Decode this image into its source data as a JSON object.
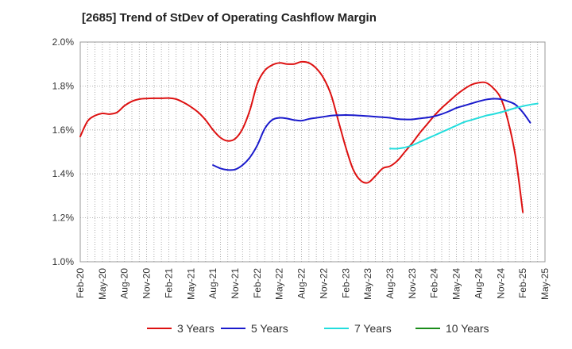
{
  "chart_data": {
    "type": "line",
    "title": "[2685]  Trend of StDev of Operating Cashflow Margin",
    "xlabel": "",
    "ylabel": "",
    "ylim": [
      1.0,
      2.0
    ],
    "y_ticks": [
      "1.0%",
      "1.2%",
      "1.4%",
      "1.6%",
      "1.8%",
      "2.0%"
    ],
    "x_ticks": [
      "Feb-20",
      "May-20",
      "Aug-20",
      "Nov-20",
      "Feb-21",
      "May-21",
      "Aug-21",
      "Nov-21",
      "Feb-22",
      "May-22",
      "Aug-22",
      "Nov-22",
      "Feb-23",
      "May-23",
      "Aug-23",
      "Nov-23",
      "Feb-24",
      "May-24",
      "Aug-24",
      "Nov-24",
      "Feb-25",
      "May-25"
    ],
    "x_start": "Feb-20",
    "grid": true,
    "legend_position": "bottom",
    "series": [
      {
        "name": "3 Years",
        "color": "#dd1111",
        "start_month_index": 0,
        "values": [
          1.57,
          1.64,
          1.665,
          1.675,
          1.672,
          1.68,
          1.71,
          1.73,
          1.74,
          1.743,
          1.744,
          1.744,
          1.745,
          1.74,
          1.725,
          1.705,
          1.68,
          1.645,
          1.6,
          1.565,
          1.55,
          1.56,
          1.605,
          1.69,
          1.81,
          1.87,
          1.895,
          1.905,
          1.9,
          1.9,
          1.91,
          1.905,
          1.88,
          1.835,
          1.76,
          1.64,
          1.52,
          1.42,
          1.37,
          1.36,
          1.39,
          1.425,
          1.435,
          1.46,
          1.5,
          1.54,
          1.585,
          1.625,
          1.665,
          1.7,
          1.73,
          1.76,
          1.785,
          1.805,
          1.815,
          1.815,
          1.79,
          1.745,
          1.64,
          1.48,
          1.225
        ]
      },
      {
        "name": "5 Years",
        "color": "#1a1acc",
        "start_month_index": 18,
        "values": [
          1.44,
          1.425,
          1.418,
          1.42,
          1.44,
          1.475,
          1.53,
          1.605,
          1.645,
          1.655,
          1.652,
          1.645,
          1.642,
          1.65,
          1.655,
          1.66,
          1.665,
          1.667,
          1.668,
          1.667,
          1.665,
          1.663,
          1.66,
          1.658,
          1.655,
          1.65,
          1.648,
          1.648,
          1.652,
          1.656,
          1.662,
          1.672,
          1.685,
          1.7,
          1.71,
          1.72,
          1.73,
          1.738,
          1.742,
          1.74,
          1.73,
          1.715,
          1.68,
          1.633
        ]
      },
      {
        "name": "7 Years",
        "color": "#22dddd",
        "start_month_index": 42,
        "values": [
          1.515,
          1.515,
          1.52,
          1.53,
          1.545,
          1.56,
          1.575,
          1.59,
          1.605,
          1.62,
          1.635,
          1.645,
          1.655,
          1.665,
          1.672,
          1.68,
          1.69,
          1.7,
          1.708,
          1.715,
          1.72
        ]
      },
      {
        "name": "10 Years",
        "color": "#1a8c1a",
        "start_month_index": 0,
        "values": []
      }
    ]
  }
}
